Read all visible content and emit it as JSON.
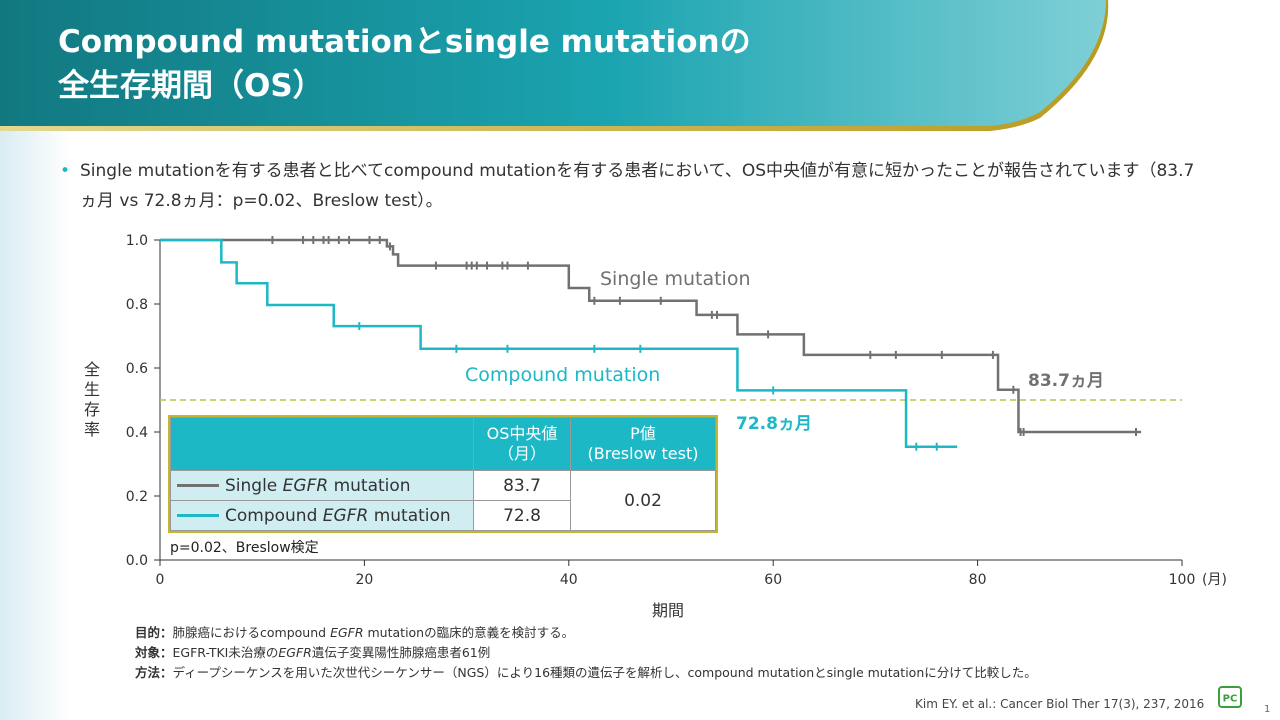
{
  "header": {
    "title_line1": "Compound mutationとsingle mutationの",
    "title_line2": "全生存期間（OS）"
  },
  "bullet": {
    "text": "Single mutationを有する患者と比べてcompound  mutationを有する患者において、OS中央値が有意に短かったことが報告されています（83.7ヵ月  vs 72.8ヵ月：p=0.02、Breslow  test）。"
  },
  "chart_data": {
    "type": "line",
    "subtype": "kaplan-meier",
    "xlabel": "期間",
    "xunit": "(月)",
    "ylabel": "全生存率",
    "xlim": [
      0,
      100
    ],
    "ylim": [
      0,
      1.0
    ],
    "xticks": [
      0,
      20,
      40,
      60,
      80,
      100
    ],
    "yticks": [
      0.0,
      0.2,
      0.4,
      0.6,
      0.8,
      1.0
    ],
    "ytick_labels": [
      "0.0",
      "0.2",
      "0.4",
      "0.6",
      "0.8",
      "1.0"
    ],
    "reference_line": {
      "y": 0.5,
      "style": "dashed",
      "color": "#a8c84a"
    },
    "series": [
      {
        "name": "Single mutation",
        "color": "#717171",
        "steps": [
          [
            0,
            1.0
          ],
          [
            22.2,
            0.98
          ],
          [
            22.8,
            0.955
          ],
          [
            23.3,
            0.92
          ],
          [
            40,
            0.85
          ],
          [
            42,
            0.81
          ],
          [
            52.5,
            0.766
          ],
          [
            56.5,
            0.705
          ],
          [
            63,
            0.641
          ],
          [
            82,
            0.532
          ],
          [
            84,
            0.4
          ],
          [
            96,
            0.4
          ]
        ],
        "censor_x": [
          11,
          14,
          15,
          16,
          16.5,
          17.5,
          18.5,
          20.5,
          21.5,
          22.5,
          27,
          30,
          30.5,
          31,
          32,
          33.5,
          34,
          36,
          42.5,
          45,
          49,
          54,
          54.5,
          59.5,
          69.5,
          72,
          76.5,
          81.5,
          83.5,
          84.2,
          84.5,
          95.5
        ],
        "label": "Single mutation",
        "median_label": "83.7ヵ月"
      },
      {
        "name": "Compound mutation",
        "color": "#1cb8c6",
        "steps": [
          [
            0,
            1.0
          ],
          [
            6,
            0.93
          ],
          [
            7.5,
            0.865
          ],
          [
            10.5,
            0.797
          ],
          [
            17,
            0.731
          ],
          [
            25.5,
            0.66
          ],
          [
            56.5,
            0.53
          ],
          [
            73,
            0.354
          ],
          [
            78,
            0.354
          ]
        ],
        "censor_x": [
          19.5,
          29,
          34,
          42.5,
          47,
          60,
          74,
          76
        ],
        "label": "Compound mutation",
        "median_label": "72.8ヵ月"
      }
    ]
  },
  "table": {
    "header_os": "OS中央値\n（月）",
    "header_p": "P値\n(Breslow test)",
    "rows": [
      {
        "pre": "Single ",
        "italic": "EGFR",
        "post": " mutation",
        "os": "83.7"
      },
      {
        "pre": "Compound ",
        "italic": "EGFR",
        "post": " mutation",
        "os": "72.8"
      }
    ],
    "p_value": "0.02"
  },
  "p_note": "p=0.02、Breslow検定",
  "notes": {
    "objective_label": "目的：",
    "objective_pre": "肺腺癌におけるcompound ",
    "objective_italic": "EGFR",
    "objective_post": " mutationの臨床的意義を検討する。",
    "target_label": "対象：",
    "target_pre": "EGFR-TKI未治療の",
    "target_italic": "EGFR",
    "target_post": "遺伝子変異陽性肺腺癌患者61例",
    "method_label": "方法：",
    "method_text": "ディープシーケンスを用いた次世代シーケンサー（NGS）により16種類の遺伝子を解析し、compound mutationとsingle mutationに分けて比較した。"
  },
  "citation": "Kim EY. et al.: Cancer Biol Ther 17(3), 237, 2016",
  "logo": "PC",
  "page_number": "1",
  "colors": {
    "teal": "#1cb8c6",
    "gray_series": "#717171",
    "gold": "#c5a52a",
    "header_dark": "#1a7f8a"
  }
}
